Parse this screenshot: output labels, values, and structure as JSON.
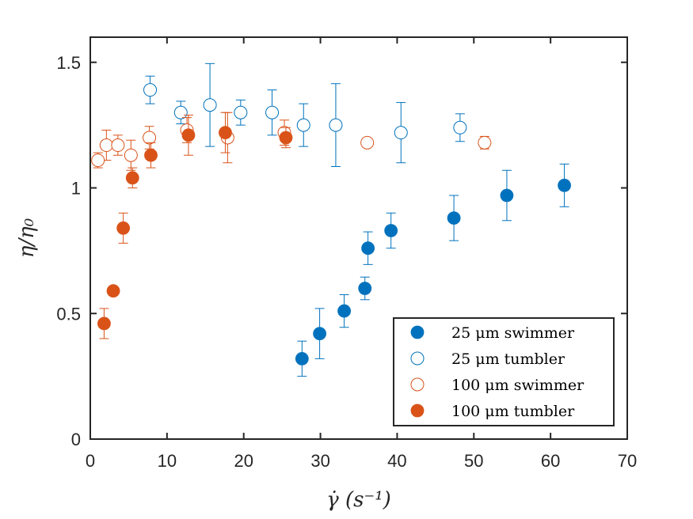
{
  "chart_data": {
    "type": "scatter",
    "title": "",
    "xlabel": "γ̇ (s⁻¹)",
    "ylabel": "η/η₀",
    "xlim": [
      0,
      70
    ],
    "ylim": [
      0,
      1.6
    ],
    "xticks": [
      0,
      10,
      20,
      30,
      40,
      50,
      60,
      70
    ],
    "yticks": [
      0,
      0.5,
      1,
      1.5
    ],
    "ytick_labels": [
      "0",
      "0.5",
      "1",
      "1.5"
    ],
    "grid": false,
    "legend_position": "bottom-right",
    "colors": {
      "blue": "#0072bd",
      "orange": "#d95319"
    },
    "series": [
      {
        "name": "25 μm swimmer",
        "color": "#0072bd",
        "filled": true,
        "points": [
          {
            "x": 27.6,
            "y": 0.32,
            "err": 0.07
          },
          {
            "x": 29.9,
            "y": 0.42,
            "err": 0.1
          },
          {
            "x": 33.1,
            "y": 0.51,
            "err": 0.065
          },
          {
            "x": 35.8,
            "y": 0.6,
            "err": 0.045
          },
          {
            "x": 36.2,
            "y": 0.76,
            "err": 0.065
          },
          {
            "x": 39.2,
            "y": 0.83,
            "err": 0.07
          },
          {
            "x": 47.4,
            "y": 0.88,
            "err": 0.09
          },
          {
            "x": 54.3,
            "y": 0.97,
            "err": 0.1
          },
          {
            "x": 61.8,
            "y": 1.01,
            "err": 0.085
          }
        ]
      },
      {
        "name": "25 μm tumbler",
        "color": "#0072bd",
        "filled": false,
        "points": [
          {
            "x": 7.8,
            "y": 1.39,
            "err": 0.055
          },
          {
            "x": 11.8,
            "y": 1.3,
            "err": 0.045
          },
          {
            "x": 15.6,
            "y": 1.33,
            "err": 0.165
          },
          {
            "x": 19.6,
            "y": 1.3,
            "err": 0.05
          },
          {
            "x": 23.7,
            "y": 1.3,
            "err": 0.09
          },
          {
            "x": 27.8,
            "y": 1.25,
            "err": 0.085
          },
          {
            "x": 32.0,
            "y": 1.25,
            "err": 0.165
          },
          {
            "x": 40.5,
            "y": 1.22,
            "err": 0.12
          },
          {
            "x": 48.2,
            "y": 1.24,
            "err": 0.055
          }
        ]
      },
      {
        "name": "100 μm swimmer",
        "color": "#d95319",
        "filled": false,
        "points": [
          {
            "x": 1.0,
            "y": 1.11,
            "err": 0.03
          },
          {
            "x": 2.1,
            "y": 1.17,
            "err": 0.06
          },
          {
            "x": 3.6,
            "y": 1.17,
            "err": 0.04
          },
          {
            "x": 5.3,
            "y": 1.13,
            "err": 0.06
          },
          {
            "x": 7.7,
            "y": 1.2,
            "err": 0.045
          },
          {
            "x": 12.6,
            "y": 1.23,
            "err": 0.05
          },
          {
            "x": 17.9,
            "y": 1.2,
            "err": 0.1
          },
          {
            "x": 25.3,
            "y": 1.22,
            "err": 0.05
          },
          {
            "x": 36.1,
            "y": 1.18,
            "err": 0.0
          },
          {
            "x": 51.4,
            "y": 1.18,
            "err": 0.025
          }
        ]
      },
      {
        "name": "100 μm tumbler",
        "color": "#d95319",
        "filled": true,
        "points": [
          {
            "x": 1.8,
            "y": 0.46,
            "err": 0.06
          },
          {
            "x": 3.0,
            "y": 0.59,
            "err": 0.0
          },
          {
            "x": 4.3,
            "y": 0.84,
            "err": 0.06
          },
          {
            "x": 5.5,
            "y": 1.04,
            "err": 0.04
          },
          {
            "x": 7.9,
            "y": 1.13,
            "err": 0.05
          },
          {
            "x": 12.8,
            "y": 1.21,
            "err": 0.08
          },
          {
            "x": 17.6,
            "y": 1.22,
            "err": 0.08
          },
          {
            "x": 25.5,
            "y": 1.2,
            "err": 0.04
          }
        ]
      }
    ]
  }
}
